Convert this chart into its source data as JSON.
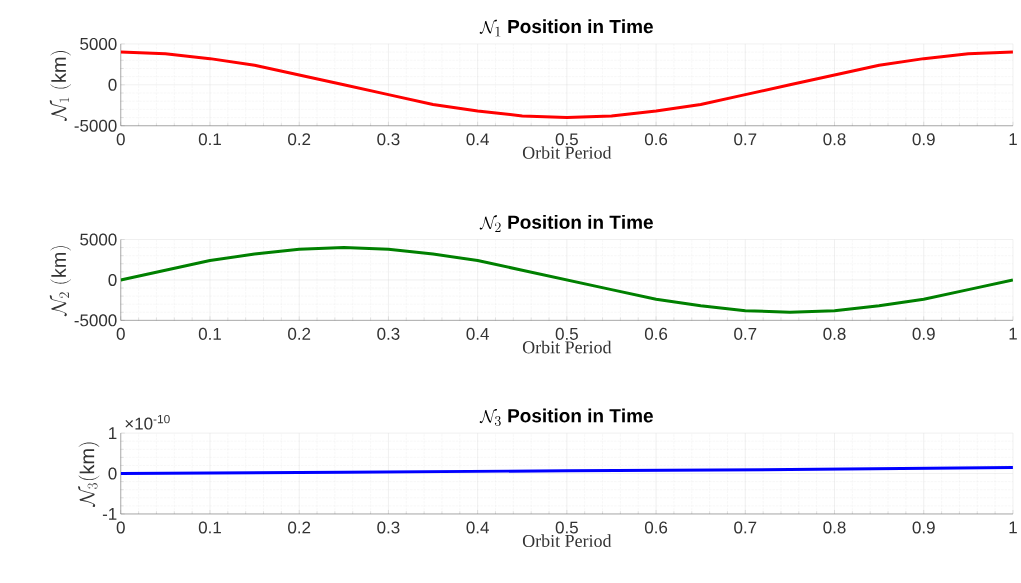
{
  "chart_data": [
    {
      "type": "line",
      "title": "\\mathcal{N}_{1}\\ \\mathbf{Position\\ in\\ Time}",
      "xlabel": "Orbit Period",
      "ylabel": "\\mathcal{N}_{1}\\ (\\mathrm{km})",
      "x": [
        0,
        0.05,
        0.1,
        0.15,
        0.2,
        0.25,
        0.3,
        0.35,
        0.4,
        0.45,
        0.5,
        0.55,
        0.6,
        0.65,
        0.7,
        0.75,
        0.8,
        0.85,
        0.9,
        0.95,
        1
      ],
      "series": [
        {
          "color": "#ff0000",
          "values": [
            4000,
            3800,
            3200,
            2400,
            1200,
            0,
            -1200,
            -2400,
            -3200,
            -3800,
            -4000,
            -3800,
            -3200,
            -2400,
            -1200,
            0,
            1200,
            2400,
            3200,
            3800,
            4000
          ]
        }
      ],
      "xlim": [
        0,
        1
      ],
      "xticks": [
        0,
        0.1,
        0.2,
        0.3,
        0.4,
        0.5,
        0.6,
        0.7,
        0.8,
        0.9,
        1
      ],
      "ylim": [
        -5000,
        5000
      ],
      "yticks": [
        -5000,
        0,
        5000
      ],
      "grid": true
    },
    {
      "type": "line",
      "title": "\\mathcal{N}_{2}\\ \\mathbf{Position\\ in\\ Time}",
      "xlabel": "Orbit Period",
      "ylabel": "\\mathcal{N}_{2}\\ (\\mathrm{km})",
      "x": [
        0,
        0.05,
        0.1,
        0.15,
        0.2,
        0.25,
        0.3,
        0.35,
        0.4,
        0.45,
        0.5,
        0.55,
        0.6,
        0.65,
        0.7,
        0.75,
        0.8,
        0.85,
        0.9,
        0.95,
        1
      ],
      "series": [
        {
          "color": "#008000",
          "values": [
            0,
            1200,
            2400,
            3200,
            3800,
            4000,
            3800,
            3200,
            2400,
            1200,
            0,
            -1200,
            -2400,
            -3200,
            -3800,
            -4000,
            -3800,
            -3200,
            -2400,
            -1200,
            0
          ]
        }
      ],
      "xlim": [
        0,
        1
      ],
      "xticks": [
        0,
        0.1,
        0.2,
        0.3,
        0.4,
        0.5,
        0.6,
        0.7,
        0.8,
        0.9,
        1
      ],
      "ylim": [
        -5000,
        5000
      ],
      "yticks": [
        -5000,
        0,
        5000
      ],
      "grid": true
    },
    {
      "type": "line",
      "title": "\\mathcal{N}_{3}\\ \\mathbf{Position\\ in\\ Time}",
      "xlabel": "Orbit Period",
      "ylabel": "\\mathcal{N}_{3}(\\mathrm{km})",
      "x": [
        0,
        0.25,
        0.5,
        0.75,
        1
      ],
      "series": [
        {
          "color": "#0000ff",
          "values": [
            0,
            0.03,
            0.07,
            0.1,
            0.15
          ]
        }
      ],
      "xlim": [
        0,
        1
      ],
      "xticks": [
        0,
        0.1,
        0.2,
        0.3,
        0.4,
        0.5,
        0.6,
        0.7,
        0.8,
        0.9,
        1
      ],
      "ylim": [
        -1,
        1
      ],
      "yticks": [
        -1,
        0,
        1
      ],
      "annotations": [
        "×10$^{-10}$"
      ],
      "grid": true
    }
  ]
}
